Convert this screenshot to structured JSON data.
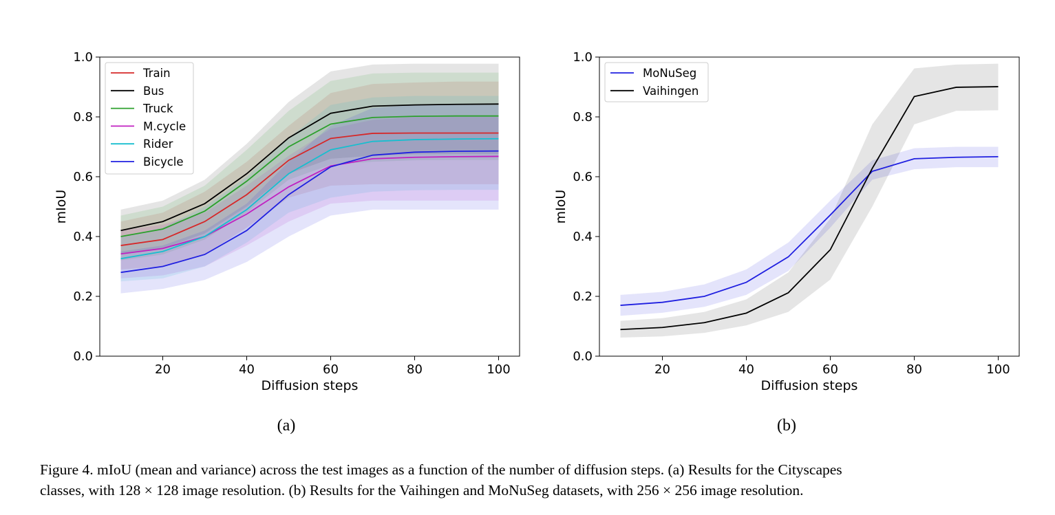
{
  "chart_data": [
    {
      "type": "line",
      "panel_label": "(a)",
      "xlabel": "Diffusion steps",
      "ylabel": "mIoU",
      "xlim": [
        5,
        105
      ],
      "ylim": [
        0.0,
        1.0
      ],
      "xticks": [
        20,
        40,
        60,
        80,
        100
      ],
      "yticks": [
        0.0,
        0.2,
        0.4,
        0.6,
        0.8,
        1.0
      ],
      "xtick_labels": [
        "20",
        "40",
        "60",
        "80",
        "100"
      ],
      "ytick_labels": [
        "0.0",
        "0.2",
        "0.4",
        "0.6",
        "0.8",
        "1.0"
      ],
      "legend_position": "top-left",
      "x": [
        10,
        20,
        30,
        40,
        50,
        60,
        70,
        80,
        90,
        100
      ],
      "series": [
        {
          "name": "Train",
          "color": "#d62728",
          "values": [
            0.37,
            0.39,
            0.45,
            0.54,
            0.655,
            0.728,
            0.745,
            0.746,
            0.746,
            0.746
          ],
          "lower": [
            0.29,
            0.3,
            0.34,
            0.43,
            0.53,
            0.57,
            0.575,
            0.575,
            0.575,
            0.575
          ],
          "upper": [
            0.45,
            0.48,
            0.55,
            0.65,
            0.77,
            0.88,
            0.91,
            0.915,
            0.918,
            0.918
          ]
        },
        {
          "name": "Bus",
          "color": "#000000",
          "values": [
            0.42,
            0.45,
            0.51,
            0.61,
            0.73,
            0.812,
            0.836,
            0.84,
            0.842,
            0.843
          ],
          "lower": [
            0.34,
            0.36,
            0.41,
            0.5,
            0.61,
            0.66,
            0.67,
            0.675,
            0.676,
            0.676
          ],
          "upper": [
            0.49,
            0.52,
            0.59,
            0.71,
            0.85,
            0.952,
            0.975,
            0.978,
            0.978,
            0.978
          ]
        },
        {
          "name": "Truck",
          "color": "#2ca02c",
          "values": [
            0.4,
            0.425,
            0.485,
            0.585,
            0.7,
            0.776,
            0.798,
            0.802,
            0.803,
            0.803
          ],
          "lower": [
            0.32,
            0.34,
            0.39,
            0.48,
            0.59,
            0.64,
            0.65,
            0.655,
            0.656,
            0.656
          ],
          "upper": [
            0.47,
            0.5,
            0.57,
            0.69,
            0.82,
            0.92,
            0.945,
            0.948,
            0.948,
            0.948
          ]
        },
        {
          "name": "M.cycle",
          "color": "#c020c0",
          "values": [
            0.342,
            0.36,
            0.4,
            0.475,
            0.566,
            0.636,
            0.66,
            0.665,
            0.667,
            0.668
          ],
          "lower": [
            0.26,
            0.27,
            0.3,
            0.37,
            0.45,
            0.51,
            0.52,
            0.52,
            0.52,
            0.52
          ],
          "upper": [
            0.42,
            0.44,
            0.48,
            0.57,
            0.67,
            0.76,
            0.79,
            0.8,
            0.8,
            0.8
          ]
        },
        {
          "name": "Rider",
          "color": "#17becf",
          "values": [
            0.326,
            0.35,
            0.4,
            0.49,
            0.61,
            0.69,
            0.718,
            0.724,
            0.726,
            0.727
          ],
          "lower": [
            0.25,
            0.26,
            0.3,
            0.38,
            0.48,
            0.53,
            0.55,
            0.555,
            0.556,
            0.556
          ],
          "upper": [
            0.4,
            0.43,
            0.5,
            0.6,
            0.73,
            0.84,
            0.865,
            0.87,
            0.87,
            0.87
          ]
        },
        {
          "name": "Bicycle",
          "color": "#1f1fe0",
          "values": [
            0.28,
            0.3,
            0.34,
            0.42,
            0.54,
            0.633,
            0.672,
            0.682,
            0.685,
            0.686
          ],
          "lower": [
            0.21,
            0.225,
            0.255,
            0.315,
            0.4,
            0.47,
            0.49,
            0.49,
            0.49,
            0.49
          ],
          "upper": [
            0.35,
            0.37,
            0.42,
            0.51,
            0.65,
            0.77,
            0.83,
            0.84,
            0.84,
            0.84
          ]
        }
      ]
    },
    {
      "type": "line",
      "panel_label": "(b)",
      "xlabel": "Diffusion steps",
      "ylabel": "mIoU",
      "xlim": [
        5,
        105
      ],
      "ylim": [
        0.0,
        1.0
      ],
      "xticks": [
        20,
        40,
        60,
        80,
        100
      ],
      "yticks": [
        0.0,
        0.2,
        0.4,
        0.6,
        0.8,
        1.0
      ],
      "xtick_labels": [
        "20",
        "40",
        "60",
        "80",
        "100"
      ],
      "ytick_labels": [
        "0.0",
        "0.2",
        "0.4",
        "0.6",
        "0.8",
        "1.0"
      ],
      "legend_position": "top-left",
      "x": [
        10,
        20,
        30,
        40,
        50,
        60,
        70,
        80,
        90,
        100
      ],
      "series": [
        {
          "name": "MoNuSeg",
          "color": "#1f1fe0",
          "values": [
            0.17,
            0.18,
            0.2,
            0.247,
            0.332,
            0.472,
            0.618,
            0.66,
            0.665,
            0.667
          ],
          "lower": [
            0.135,
            0.145,
            0.165,
            0.205,
            0.285,
            0.43,
            0.59,
            0.625,
            0.632,
            0.632
          ],
          "upper": [
            0.205,
            0.215,
            0.24,
            0.29,
            0.38,
            0.52,
            0.655,
            0.695,
            0.7,
            0.7
          ]
        },
        {
          "name": "Vaihingen",
          "color": "#000000",
          "values": [
            0.089,
            0.096,
            0.112,
            0.144,
            0.212,
            0.356,
            0.628,
            0.868,
            0.899,
            0.901
          ],
          "lower": [
            0.062,
            0.066,
            0.078,
            0.103,
            0.148,
            0.256,
            0.5,
            0.775,
            0.82,
            0.822
          ],
          "upper": [
            0.118,
            0.127,
            0.148,
            0.19,
            0.28,
            0.46,
            0.775,
            0.962,
            0.975,
            0.978
          ]
        }
      ]
    }
  ],
  "caption": {
    "line1": "Figure 4.  mIoU (mean and variance) across the test images as a function of the number of diffusion steps.  (a) Results for the Cityscapes",
    "line2": "classes, with 128 × 128 image resolution. (b) Results for the Vaihingen and MoNuSeg datasets, with 256 × 256 image resolution."
  }
}
